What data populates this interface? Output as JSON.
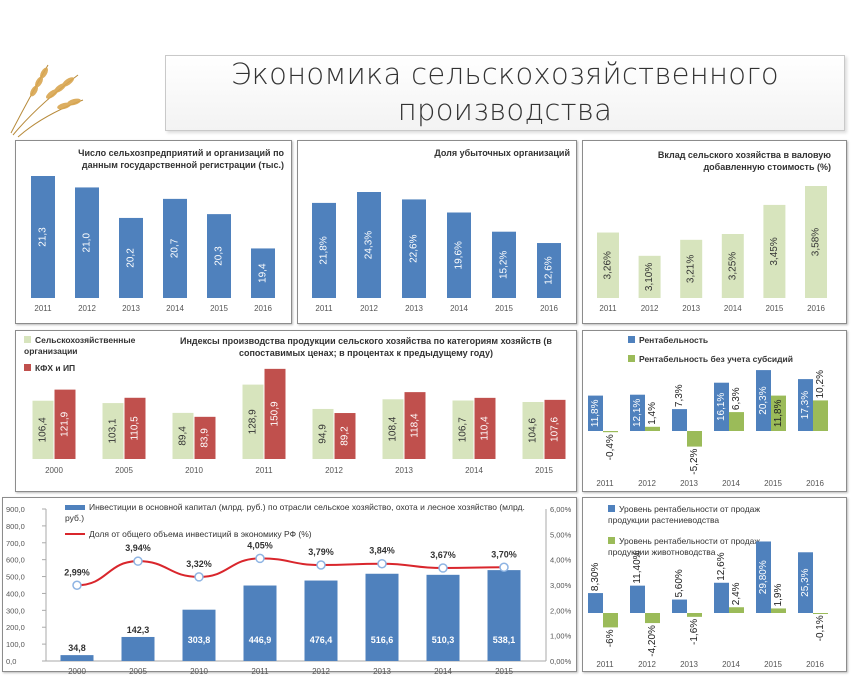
{
  "header": {
    "title_line1": "Экономика сельскохозяйственного",
    "title_line2": "производства",
    "logo_icon": "wheat-ears-icon"
  },
  "colors": {
    "blue": "#4f81bd",
    "red": "#c0504d",
    "light_green": "#d7e4bd",
    "green": "#9bbb59",
    "line_red": "#d9262c"
  },
  "chart_data": [
    {
      "type": "bar",
      "title_lines": [
        "Число сельхозпредприятий и организаций по",
        "данным государственной регистрации (тыс.)"
      ],
      "categories": [
        "2011",
        "2012",
        "2013",
        "2014",
        "2015",
        "2016"
      ],
      "values": [
        21.3,
        21.0,
        20.2,
        20.7,
        20.3,
        19.4
      ],
      "labels": [
        "21,3",
        "21,0",
        "20,2",
        "20,7",
        "20,3",
        "19,4"
      ],
      "ylim": [
        18.1,
        21.5
      ]
    },
    {
      "type": "bar",
      "title_lines": [
        "Доля убыточных организаций"
      ],
      "categories": [
        "2011",
        "2012",
        "2013",
        "2014",
        "2015",
        "2016"
      ],
      "values": [
        21.8,
        24.3,
        22.6,
        19.6,
        15.2,
        12.6
      ],
      "labels": [
        "21,8%",
        "24,3%",
        "22,6%",
        "19,6%",
        "15,2%",
        "12,6%"
      ],
      "ylim": [
        0,
        25
      ]
    },
    {
      "type": "bar",
      "title_lines": [
        "Вклад сельского хозяйства в валовую",
        "добавленную стоимость (%)"
      ],
      "categories": [
        "2011",
        "2012",
        "2013",
        "2014",
        "2015",
        "2016"
      ],
      "values": [
        3.26,
        3.1,
        3.21,
        3.25,
        3.45,
        3.58
      ],
      "labels": [
        "3,26%",
        "3,10%",
        "3,21%",
        "3,25%",
        "3,45%",
        "3,58%"
      ],
      "ylim": [
        2.81,
        3.6
      ]
    },
    {
      "type": "bar",
      "title_lines": [
        "Индексы производства продукции сельского хозяйства по категориям хозяйств (в",
        "сопоставимых ценах; в процентах к предыдущему году)"
      ],
      "categories": [
        "2000",
        "2005",
        "2010",
        "2011",
        "2012",
        "2013",
        "2014",
        "2015"
      ],
      "series": [
        {
          "name": "Сельскохозяйственные организации",
          "values": [
            106.4,
            103.1,
            89.4,
            128.9,
            94.9,
            108.4,
            106.7,
            104.6
          ],
          "labels": [
            "106,4",
            "103,1",
            "89,4",
            "128,9",
            "94,9",
            "108,4",
            "106,7",
            "104,6"
          ]
        },
        {
          "name": "КФХ и ИП",
          "values": [
            121.9,
            110.5,
            83.9,
            150.9,
            89.2,
            118.4,
            110.4,
            107.6
          ],
          "labels": [
            "121,9",
            "110,5",
            "83,9",
            "150,9",
            "89,2",
            "118,4",
            "110,4",
            "107,6"
          ]
        }
      ],
      "legend_position": "left",
      "ylim": [
        25,
        155
      ]
    },
    {
      "type": "bar",
      "categories": [
        "2011",
        "2012",
        "2013",
        "2014",
        "2015",
        "2016"
      ],
      "series": [
        {
          "name": "Рентабельность",
          "values": [
            11.8,
            12.1,
            7.3,
            16.1,
            20.3,
            17.3
          ],
          "labels": [
            "11,8%",
            "12,1%",
            "7,3%",
            "16,1%",
            "20,3%",
            "17,3%"
          ]
        },
        {
          "name": "Рентабельность без учета субсидий",
          "values": [
            -0.4,
            1.4,
            -5.2,
            6.3,
            11.8,
            10.2
          ],
          "labels": [
            "-0,4%",
            "1,4%",
            "-5,2%",
            "6,3%",
            "11,8%",
            "10,2%"
          ]
        }
      ],
      "legend_position": "top"
    },
    {
      "type": "bar",
      "categories": [
        "2000",
        "2005",
        "2010",
        "2011",
        "2012",
        "2013",
        "2014",
        "2015"
      ],
      "series": [
        {
          "name": "Инвестиции в основной капитал (млрд. руб.) по отрасли сельское хозяйство, охота и лесное хозяйство (млрд. руб.)",
          "type": "bar",
          "axis": "left",
          "values": [
            34.8,
            142.3,
            303.8,
            446.9,
            476.4,
            516.6,
            510.3,
            538.1
          ],
          "labels": [
            "34,8",
            "142,3",
            "303,8",
            "446,9",
            "476,4",
            "516,6",
            "510,3",
            "538,1"
          ]
        },
        {
          "name": "Доля от общего объема инвестиций в экономику РФ (%)",
          "type": "line",
          "axis": "right",
          "values": [
            2.99,
            3.94,
            3.32,
            4.05,
            3.79,
            3.84,
            3.67,
            3.7
          ],
          "labels": [
            "2,99%",
            "3,94%",
            "3,32%",
            "4,05%",
            "3,79%",
            "3,84%",
            "3,67%",
            "3,70%"
          ]
        }
      ],
      "y_left": {
        "range": [
          0,
          900
        ],
        "ticks": [
          "0,0",
          "100,0",
          "200,0",
          "300,0",
          "400,0",
          "500,0",
          "600,0",
          "700,0",
          "800,0",
          "900,0"
        ]
      },
      "y_right": {
        "range": [
          0,
          6
        ],
        "ticks": [
          "0,00%",
          "1,00%",
          "2,00%",
          "3,00%",
          "4,00%",
          "5,00%",
          "6,00%"
        ]
      },
      "legend_position": "top"
    },
    {
      "type": "bar",
      "categories": [
        "2011",
        "2012",
        "2013",
        "2014",
        "2015",
        "2016"
      ],
      "series": [
        {
          "name": "Уровень рентабельности от продаж продукции растениеводства",
          "values": [
            8.3,
            11.4,
            5.6,
            12.6,
            29.8,
            25.3
          ],
          "labels": [
            "8,30%",
            "11,40%",
            "5,60%",
            "12,6%",
            "29,80%",
            "25,3%"
          ]
        },
        {
          "name": "Уровень рентабельности от продаж продукции животноводства",
          "values": [
            -6,
            -4.2,
            -1.6,
            2.4,
            1.9,
            -0.1
          ],
          "labels": [
            "-6%",
            "-4,20%",
            "-1,6%",
            "2,4%",
            "1,9%",
            "-0,1%"
          ]
        }
      ],
      "legend_position": "top"
    }
  ]
}
